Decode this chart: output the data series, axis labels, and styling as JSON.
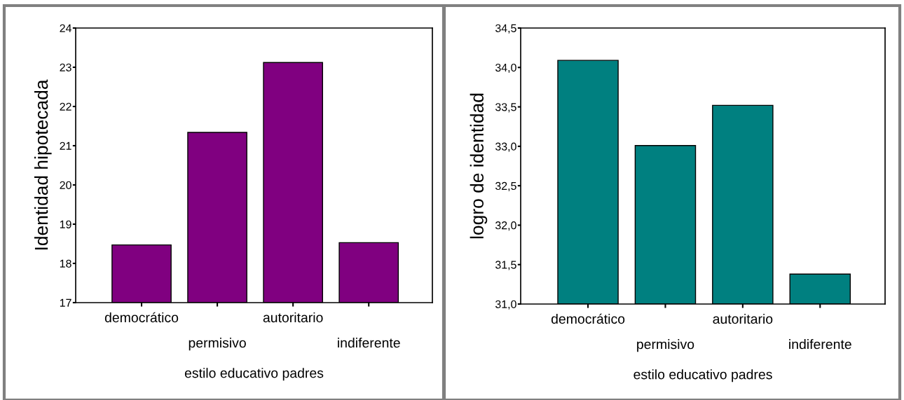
{
  "chart_data": [
    {
      "type": "bar",
      "categories": [
        "democrático",
        "permisivo",
        "autoritario",
        "indiferente"
      ],
      "values": [
        18.47,
        21.34,
        23.12,
        18.53
      ],
      "color": "#800080",
      "ylim": [
        17,
        24
      ],
      "yticks": [
        17,
        18,
        19,
        20,
        21,
        22,
        23,
        24
      ],
      "xlabel": "estilo educativo padres",
      "ylabel": "Identidad hipotecada",
      "grid": false,
      "legend": false
    },
    {
      "type": "bar",
      "categories": [
        "democrático",
        "permisivo",
        "autoritario",
        "indiferente"
      ],
      "values": [
        34.09,
        33.01,
        33.52,
        31.38
      ],
      "color": "#008080",
      "ylim": [
        31,
        34.5
      ],
      "yticks": [
        {
          "value": 31,
          "label": "31,0"
        },
        {
          "value": 31.5,
          "label": "31,5"
        },
        {
          "value": 32,
          "label": "32,0"
        },
        {
          "value": 32.5,
          "label": "32,5"
        },
        {
          "value": 33,
          "label": "33,0"
        },
        {
          "value": 33.5,
          "label": "33,5"
        },
        {
          "value": 34,
          "label": "34,0"
        },
        {
          "value": 34.5,
          "label": "34,5"
        }
      ],
      "xlabel": "estilo educativo padres",
      "ylabel": "logro de identidad",
      "grid": false,
      "legend": false
    }
  ]
}
